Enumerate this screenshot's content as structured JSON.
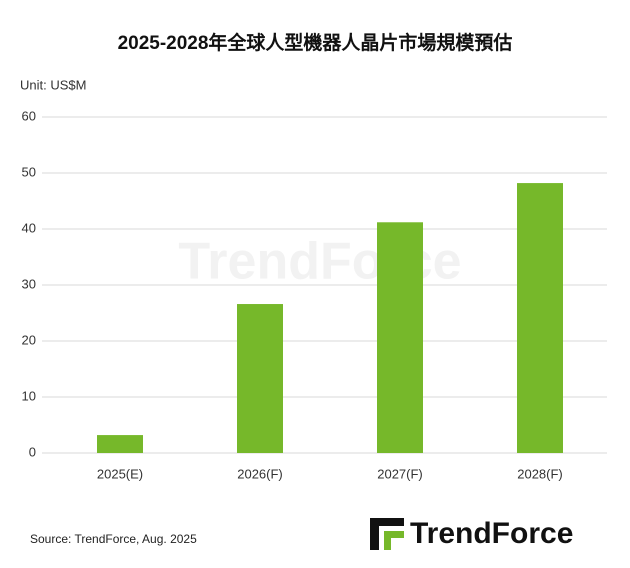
{
  "chart_data": {
    "type": "bar",
    "title": "2025-2028年全球人型機器人晶片市場規模預估",
    "unit_label": "Unit: US$M",
    "categories": [
      "2025(E)",
      "2026(F)",
      "2027(F)",
      "2028(F)"
    ],
    "values": [
      3.2,
      26.6,
      41.2,
      48.2
    ],
    "color": "#76b82a",
    "ylim": [
      0,
      60
    ],
    "yticks": [
      0,
      10,
      20,
      30,
      40,
      50,
      60
    ],
    "grid": true,
    "source": "Source: TrendForce, Aug. 2025",
    "logo": "TrendForce"
  }
}
